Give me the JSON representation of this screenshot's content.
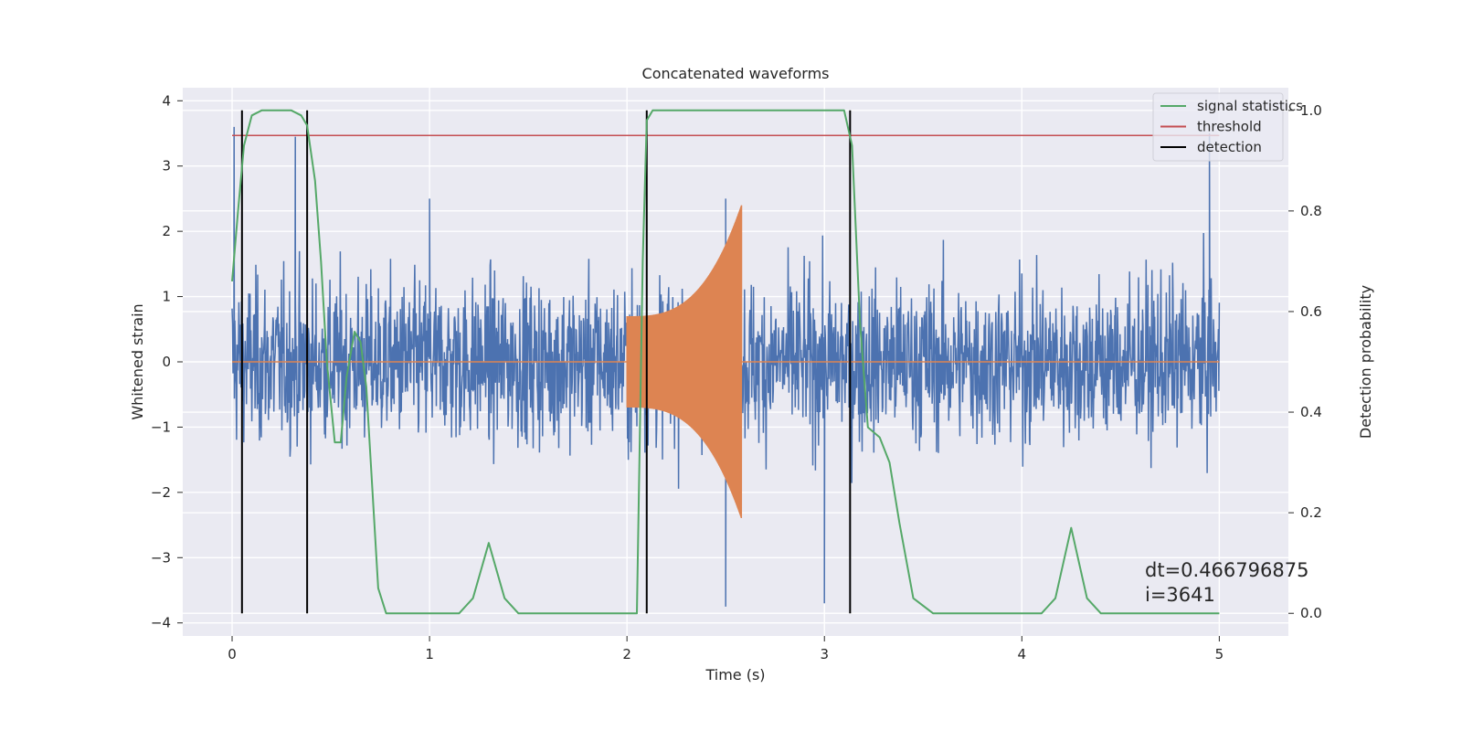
{
  "chart_data": {
    "type": "line",
    "title": "Concatenated waveforms",
    "xlabel": "Time (s)",
    "ylabel": "Whitened strain",
    "y2label": "Detection probability",
    "xlim": [
      -0.25,
      5.35
    ],
    "ylim": [
      -4.2,
      4.2
    ],
    "y2lim": [
      -0.045,
      1.045
    ],
    "x_ticks": [
      0,
      1,
      2,
      3,
      4,
      5
    ],
    "y_ticks": [
      -4,
      -3,
      -2,
      -1,
      0,
      1,
      2,
      3,
      4
    ],
    "y2_ticks": [
      0.0,
      0.2,
      0.4,
      0.6,
      0.8,
      1.0
    ],
    "x_tick_labels": [
      "0",
      "1",
      "2",
      "3",
      "4",
      "5"
    ],
    "y_tick_labels": [
      "−4",
      "−3",
      "−2",
      "−1",
      "0",
      "1",
      "2",
      "3",
      "4"
    ],
    "y2_tick_labels": [
      "0.0",
      "0.2",
      "0.4",
      "0.6",
      "0.8",
      "1.0"
    ],
    "grid": true,
    "legend_position": "top-right",
    "series": [
      {
        "name": "",
        "role": "whitened strain noise",
        "color": "#4c72b0",
        "axis": "left",
        "x_range": [
          0,
          5
        ],
        "typical_amplitude": 1.4,
        "peak_points": [
          [
            0.01,
            3.6
          ],
          [
            0.32,
            3.45
          ],
          [
            1.0,
            2.5
          ],
          [
            2.5,
            2.5
          ],
          [
            3.0,
            -3.7
          ],
          [
            4.95,
            3.5
          ],
          [
            2.5,
            -3.75
          ]
        ]
      },
      {
        "name": "",
        "role": "injected chirp waveform",
        "color": "#dd8452",
        "axis": "left",
        "start": 2.0,
        "end": 2.58,
        "start_amplitude": 0.7,
        "peak_amplitude": 2.4,
        "baseline": 0
      },
      {
        "name": "signal statistics",
        "color": "#55a868",
        "axis": "right",
        "points": [
          [
            0.0,
            0.66
          ],
          [
            0.03,
            0.8
          ],
          [
            0.06,
            0.93
          ],
          [
            0.1,
            0.99
          ],
          [
            0.15,
            1.0
          ],
          [
            0.3,
            1.0
          ],
          [
            0.35,
            0.99
          ],
          [
            0.38,
            0.97
          ],
          [
            0.42,
            0.86
          ],
          [
            0.45,
            0.7
          ],
          [
            0.48,
            0.5
          ],
          [
            0.52,
            0.34
          ],
          [
            0.55,
            0.34
          ],
          [
            0.58,
            0.47
          ],
          [
            0.62,
            0.56
          ],
          [
            0.65,
            0.54
          ],
          [
            0.68,
            0.45
          ],
          [
            0.71,
            0.25
          ],
          [
            0.74,
            0.05
          ],
          [
            0.78,
            0.0
          ],
          [
            1.15,
            0.0
          ],
          [
            1.22,
            0.03
          ],
          [
            1.3,
            0.14
          ],
          [
            1.38,
            0.03
          ],
          [
            1.45,
            0.0
          ],
          [
            2.05,
            0.0
          ],
          [
            2.08,
            0.7
          ],
          [
            2.1,
            0.98
          ],
          [
            2.13,
            1.0
          ],
          [
            3.1,
            1.0
          ],
          [
            3.14,
            0.93
          ],
          [
            3.18,
            0.58
          ],
          [
            3.22,
            0.37
          ],
          [
            3.28,
            0.35
          ],
          [
            3.33,
            0.3
          ],
          [
            3.38,
            0.18
          ],
          [
            3.45,
            0.03
          ],
          [
            3.55,
            0.0
          ],
          [
            4.1,
            0.0
          ],
          [
            4.17,
            0.03
          ],
          [
            4.25,
            0.17
          ],
          [
            4.33,
            0.03
          ],
          [
            4.4,
            0.0
          ],
          [
            5.0,
            0.0
          ]
        ]
      },
      {
        "name": "threshold",
        "color": "#c44e52",
        "axis": "right",
        "x": [
          0,
          5
        ],
        "y": [
          0.95,
          0.95
        ]
      },
      {
        "name": "detection",
        "color": "#000000",
        "axis": "right",
        "x": [
          0.05,
          0.38,
          2.1,
          3.13
        ],
        "y_range": [
          0.0,
          1.0
        ]
      }
    ],
    "annotation": {
      "lines": [
        "dt=0.466796875",
        " i=3641"
      ],
      "x": 4.5,
      "y": -3.0
    }
  }
}
